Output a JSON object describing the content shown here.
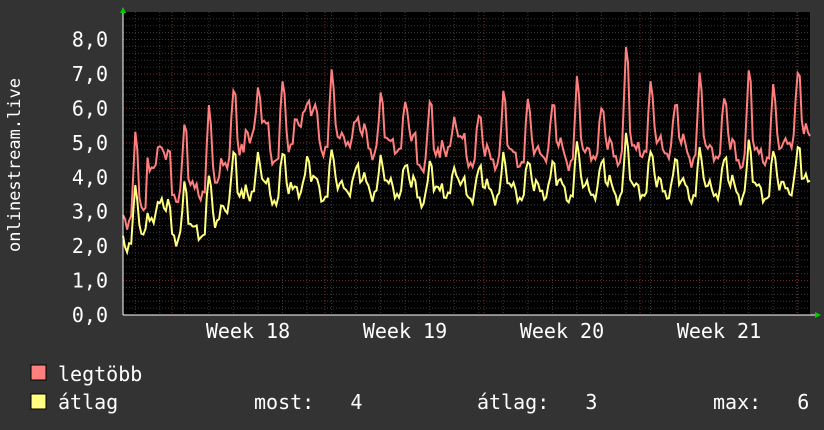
{
  "chart_data": {
    "type": "line",
    "ylabel": "onlinestream.live",
    "ylim": [
      0,
      8.8
    ],
    "yticks": [
      "0,0",
      "1,0",
      "2,0",
      "3,0",
      "4,0",
      "5,0",
      "6,0",
      "7,0",
      "8,0"
    ],
    "xticks": [
      "Week 18",
      "Week 19",
      "Week 20",
      "Week 21"
    ],
    "grid": true,
    "colors": {
      "background": "#333333",
      "plot_background": "#000000",
      "grid_minor": "#3a3a3a",
      "grid_major": "#7a2a2a",
      "axis_arrow": "#00cc00"
    },
    "x": [
      "Week 17.55",
      "Week 17.7",
      "Week 17.85",
      "Week 18",
      "Week 18.15",
      "Week 18.3",
      "Week 18.45",
      "Week 18.6",
      "Week 18.75",
      "Week 18.9",
      "Week 19.05",
      "Week 19.2",
      "Week 19.35",
      "Week 19.5",
      "Week 19.65",
      "Week 19.8",
      "Week 19.95",
      "Week 20.1",
      "Week 20.25",
      "Week 20.4",
      "Week 20.55",
      "Week 20.7",
      "Week 20.85",
      "Week 21",
      "Week 21.15",
      "Week 21.3",
      "Week 21.45",
      "Week 21.6"
    ],
    "series": [
      {
        "name": "legtöbb",
        "color": "#ff7f7f",
        "values": [
          2.9,
          4.5,
          3.6,
          3.7,
          4.6,
          5.4,
          4.7,
          5.8,
          5.0,
          5.2,
          4.9,
          5.0,
          4.5,
          5.0,
          4.6,
          4.6,
          4.6,
          4.8,
          4.6,
          4.8,
          4.7,
          4.9,
          4.9,
          4.7,
          4.8,
          4.6,
          4.7,
          5.2
        ],
        "peaks": [
          5.4,
          5.0,
          5.7,
          6.2,
          6.8,
          6.6,
          7.0,
          6.2,
          7.2,
          5.8,
          6.5,
          6.3,
          6.4,
          5.7,
          6.0,
          6.6,
          6.4,
          6.3,
          7.0,
          6.2,
          8.0,
          6.9,
          6.3,
          7.1,
          6.5,
          7.3,
          6.8,
          7.3
        ],
        "legend_label": "legtöbb"
      },
      {
        "name": "átlag",
        "color": "#ffff80",
        "values": [
          2.2,
          3.0,
          2.4,
          2.5,
          3.3,
          3.7,
          3.5,
          3.8,
          3.6,
          3.8,
          3.7,
          3.7,
          3.5,
          3.7,
          3.6,
          3.6,
          3.6,
          3.7,
          3.6,
          3.7,
          3.6,
          3.7,
          3.7,
          3.6,
          3.7,
          3.6,
          3.6,
          3.8
        ],
        "peaks": [
          3.8,
          3.4,
          3.9,
          4.2,
          4.9,
          4.7,
          4.9,
          4.6,
          4.9,
          4.4,
          4.6,
          4.5,
          4.5,
          4.3,
          4.4,
          4.7,
          4.6,
          4.5,
          5.1,
          4.6,
          5.3,
          4.9,
          4.6,
          4.9,
          4.7,
          5.1,
          4.9,
          5.0
        ],
        "legend_label": "átlag"
      }
    ]
  },
  "legend": {
    "items": [
      {
        "label": "legtöbb",
        "color": "#ff7f7f"
      },
      {
        "label": "átlag",
        "color": "#ffff80"
      }
    ],
    "stats": {
      "most": "most:   4",
      "atlag": "átlag:   3",
      "max": "max:   6"
    }
  }
}
